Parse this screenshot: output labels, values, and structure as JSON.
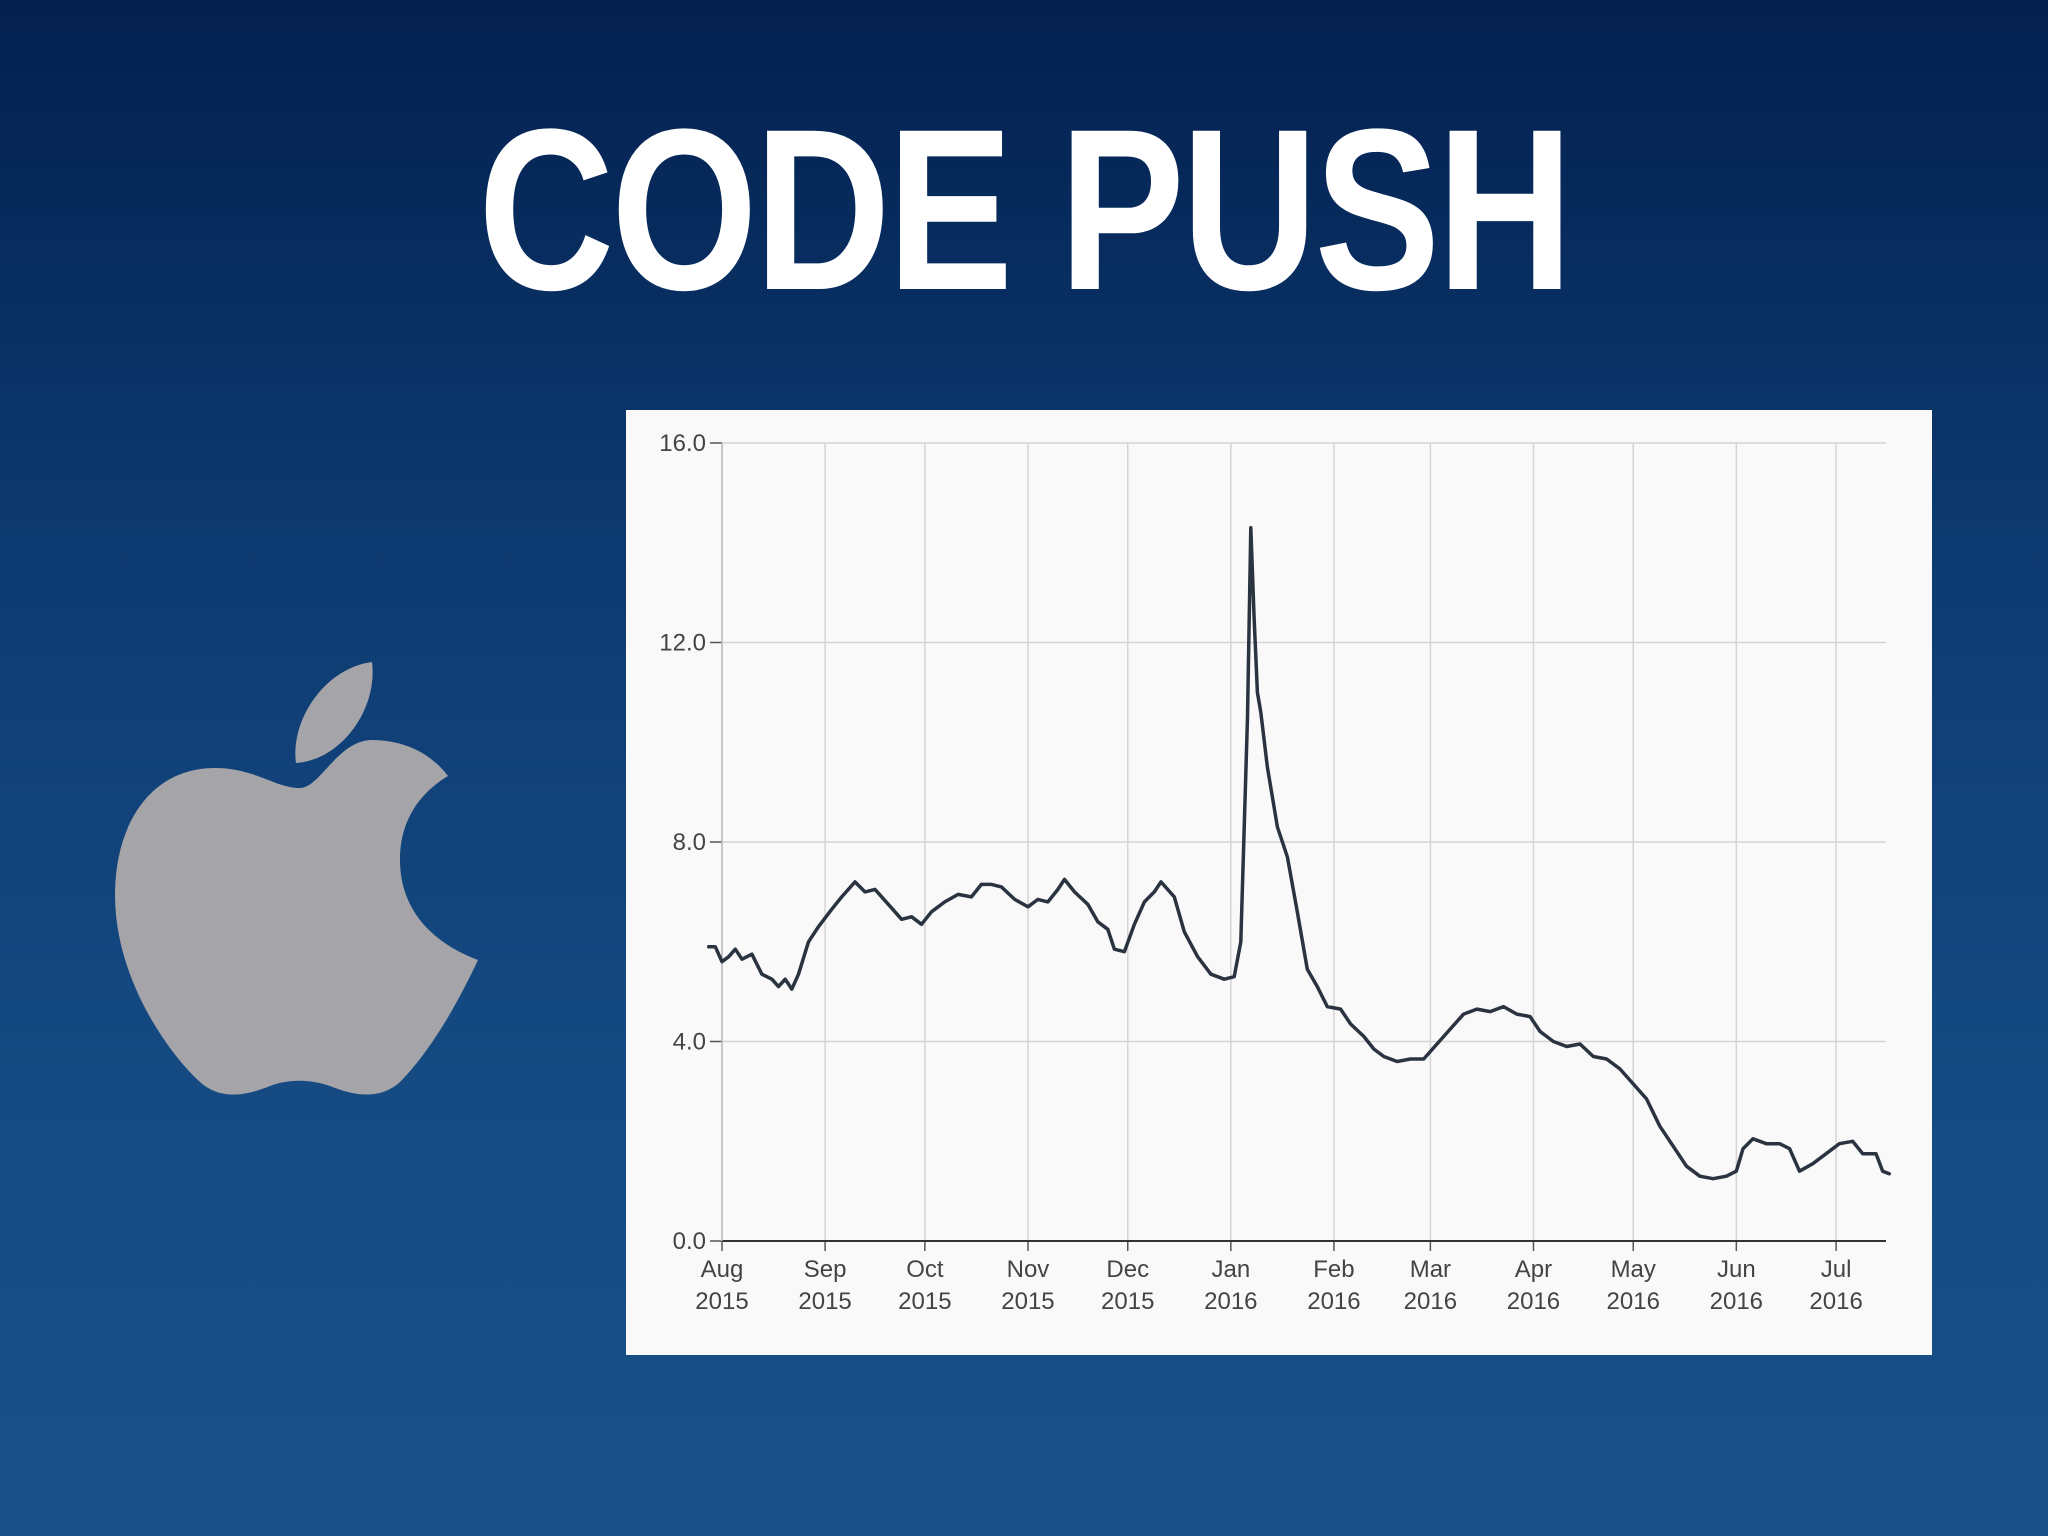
{
  "slide": {
    "title": "CODE PUSH",
    "logo_icon": "apple-logo-icon",
    "logo_color": "#a4a4a9",
    "line_color": "#2a3340"
  },
  "chart_data": {
    "type": "line",
    "title": "",
    "xlabel": "",
    "ylabel": "",
    "ylim": [
      0,
      16
    ],
    "yticks": [
      "0.0",
      "4.0",
      "8.0",
      "12.0",
      "16.0"
    ],
    "xtick_months": [
      {
        "month": "Aug",
        "year": "2015",
        "date": "2015-08-01"
      },
      {
        "month": "Sep",
        "year": "2015",
        "date": "2015-09-01"
      },
      {
        "month": "Oct",
        "year": "2015",
        "date": "2015-10-01"
      },
      {
        "month": "Nov",
        "year": "2015",
        "date": "2015-11-01"
      },
      {
        "month": "Dec",
        "year": "2015",
        "date": "2015-12-01"
      },
      {
        "month": "Jan",
        "year": "2016",
        "date": "2016-01-01"
      },
      {
        "month": "Feb",
        "year": "2016",
        "date": "2016-02-01"
      },
      {
        "month": "Mar",
        "year": "2016",
        "date": "2016-03-01"
      },
      {
        "month": "Apr",
        "year": "2016",
        "date": "2016-04-01"
      },
      {
        "month": "May",
        "year": "2016",
        "date": "2016-05-01"
      },
      {
        "month": "Jun",
        "year": "2016",
        "date": "2016-06-01"
      },
      {
        "month": "Jul",
        "year": "2016",
        "date": "2016-07-01"
      }
    ],
    "xlim": [
      "2015-08-01",
      "2016-07-16"
    ],
    "grid": true,
    "series": [
      {
        "points": [
          [
            "2015-07-28",
            5.9
          ],
          [
            "2015-07-30",
            5.9
          ],
          [
            "2015-08-01",
            5.6
          ],
          [
            "2015-08-03",
            5.7
          ],
          [
            "2015-08-05",
            5.85
          ],
          [
            "2015-08-07",
            5.65
          ],
          [
            "2015-08-10",
            5.75
          ],
          [
            "2015-08-13",
            5.35
          ],
          [
            "2015-08-16",
            5.25
          ],
          [
            "2015-08-18",
            5.1
          ],
          [
            "2015-08-20",
            5.25
          ],
          [
            "2015-08-22",
            5.05
          ],
          [
            "2015-08-24",
            5.35
          ],
          [
            "2015-08-27",
            6.0
          ],
          [
            "2015-08-30",
            6.3
          ],
          [
            "2015-09-03",
            6.65
          ],
          [
            "2015-09-06",
            6.9
          ],
          [
            "2015-09-10",
            7.2
          ],
          [
            "2015-09-13",
            7.0
          ],
          [
            "2015-09-16",
            7.05
          ],
          [
            "2015-09-20",
            6.75
          ],
          [
            "2015-09-24",
            6.45
          ],
          [
            "2015-09-27",
            6.5
          ],
          [
            "2015-09-30",
            6.35
          ],
          [
            "2015-10-03",
            6.6
          ],
          [
            "2015-10-07",
            6.8
          ],
          [
            "2015-10-11",
            6.95
          ],
          [
            "2015-10-15",
            6.9
          ],
          [
            "2015-10-18",
            7.15
          ],
          [
            "2015-10-21",
            7.15
          ],
          [
            "2015-10-24",
            7.1
          ],
          [
            "2015-10-28",
            6.85
          ],
          [
            "2015-11-01",
            6.7
          ],
          [
            "2015-11-04",
            6.85
          ],
          [
            "2015-11-07",
            6.8
          ],
          [
            "2015-11-10",
            7.05
          ],
          [
            "2015-11-12",
            7.25
          ],
          [
            "2015-11-15",
            7.0
          ],
          [
            "2015-11-19",
            6.75
          ],
          [
            "2015-11-22",
            6.4
          ],
          [
            "2015-11-25",
            6.25
          ],
          [
            "2015-11-27",
            5.85
          ],
          [
            "2015-11-30",
            5.8
          ],
          [
            "2015-12-03",
            6.35
          ],
          [
            "2015-12-06",
            6.8
          ],
          [
            "2015-12-09",
            7.0
          ],
          [
            "2015-12-11",
            7.2
          ],
          [
            "2015-12-15",
            6.9
          ],
          [
            "2015-12-18",
            6.2
          ],
          [
            "2015-12-22",
            5.7
          ],
          [
            "2015-12-26",
            5.35
          ],
          [
            "2015-12-30",
            5.25
          ],
          [
            "2016-01-02",
            5.3
          ],
          [
            "2016-01-04",
            6.0
          ],
          [
            "2016-01-06",
            10.5
          ],
          [
            "2016-01-07",
            14.3
          ],
          [
            "2016-01-08",
            12.5
          ],
          [
            "2016-01-09",
            11.0
          ],
          [
            "2016-01-10",
            10.6
          ],
          [
            "2016-01-12",
            9.5
          ],
          [
            "2016-01-15",
            8.3
          ],
          [
            "2016-01-18",
            7.7
          ],
          [
            "2016-01-21",
            6.6
          ],
          [
            "2016-01-24",
            5.45
          ],
          [
            "2016-01-27",
            5.1
          ],
          [
            "2016-01-30",
            4.7
          ],
          [
            "2016-02-03",
            4.65
          ],
          [
            "2016-02-06",
            4.35
          ],
          [
            "2016-02-10",
            4.1
          ],
          [
            "2016-02-13",
            3.85
          ],
          [
            "2016-02-16",
            3.7
          ],
          [
            "2016-02-20",
            3.6
          ],
          [
            "2016-02-24",
            3.65
          ],
          [
            "2016-02-28",
            3.65
          ],
          [
            "2016-03-03",
            3.95
          ],
          [
            "2016-03-07",
            4.25
          ],
          [
            "2016-03-11",
            4.55
          ],
          [
            "2016-03-15",
            4.65
          ],
          [
            "2016-03-19",
            4.6
          ],
          [
            "2016-03-23",
            4.7
          ],
          [
            "2016-03-27",
            4.55
          ],
          [
            "2016-03-31",
            4.5
          ],
          [
            "2016-04-03",
            4.2
          ],
          [
            "2016-04-07",
            4.0
          ],
          [
            "2016-04-11",
            3.9
          ],
          [
            "2016-04-15",
            3.95
          ],
          [
            "2016-04-19",
            3.7
          ],
          [
            "2016-04-23",
            3.65
          ],
          [
            "2016-04-27",
            3.45
          ],
          [
            "2016-05-01",
            3.15
          ],
          [
            "2016-05-05",
            2.85
          ],
          [
            "2016-05-09",
            2.3
          ],
          [
            "2016-05-13",
            1.9
          ],
          [
            "2016-05-17",
            1.5
          ],
          [
            "2016-05-21",
            1.3
          ],
          [
            "2016-05-25",
            1.25
          ],
          [
            "2016-05-29",
            1.3
          ],
          [
            "2016-06-01",
            1.4
          ],
          [
            "2016-06-03",
            1.85
          ],
          [
            "2016-06-06",
            2.05
          ],
          [
            "2016-06-10",
            1.95
          ],
          [
            "2016-06-14",
            1.95
          ],
          [
            "2016-06-17",
            1.85
          ],
          [
            "2016-06-20",
            1.4
          ],
          [
            "2016-06-24",
            1.55
          ],
          [
            "2016-06-28",
            1.75
          ],
          [
            "2016-07-02",
            1.95
          ],
          [
            "2016-07-06",
            2.0
          ],
          [
            "2016-07-09",
            1.75
          ],
          [
            "2016-07-13",
            1.75
          ],
          [
            "2016-07-15",
            1.4
          ],
          [
            "2016-07-17",
            1.35
          ]
        ]
      }
    ]
  }
}
